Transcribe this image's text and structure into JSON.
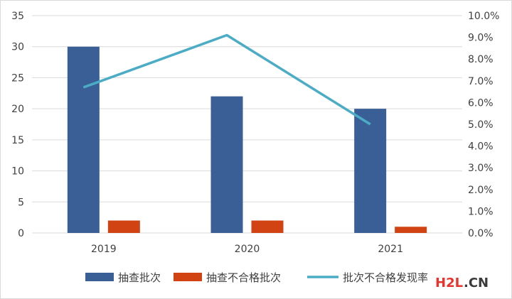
{
  "chart_data": {
    "type": "bar",
    "categories": [
      "2019",
      "2020",
      "2021"
    ],
    "series": [
      {
        "name": "抽查批次",
        "kind": "bar",
        "axis": "left",
        "color": "#3a5f96",
        "values": [
          30,
          22,
          20
        ]
      },
      {
        "name": "抽查不合格批次",
        "kind": "bar",
        "axis": "left",
        "color": "#d24314",
        "values": [
          2,
          2,
          1
        ]
      },
      {
        "name": "批次不合格发现率",
        "kind": "line",
        "axis": "right",
        "color": "#4bacc6",
        "values": [
          0.067,
          0.091,
          0.05
        ]
      }
    ],
    "y_left": {
      "min": 0,
      "max": 35,
      "ticks": [
        "0",
        "5",
        "10",
        "15",
        "20",
        "25",
        "30",
        "35"
      ]
    },
    "y_right": {
      "min": 0,
      "max": 0.1,
      "ticks": [
        "0.0%",
        "1.0%",
        "2.0%",
        "3.0%",
        "4.0%",
        "5.0%",
        "6.0%",
        "7.0%",
        "8.0%",
        "9.0%",
        "10.0%"
      ]
    },
    "legend_position": "bottom",
    "grid": "horizontal"
  },
  "watermark": {
    "text_main": "H2L",
    "text_suffix": ".CN",
    "color_main": "#e8322b",
    "color_suffix": "#3a3a3a"
  }
}
